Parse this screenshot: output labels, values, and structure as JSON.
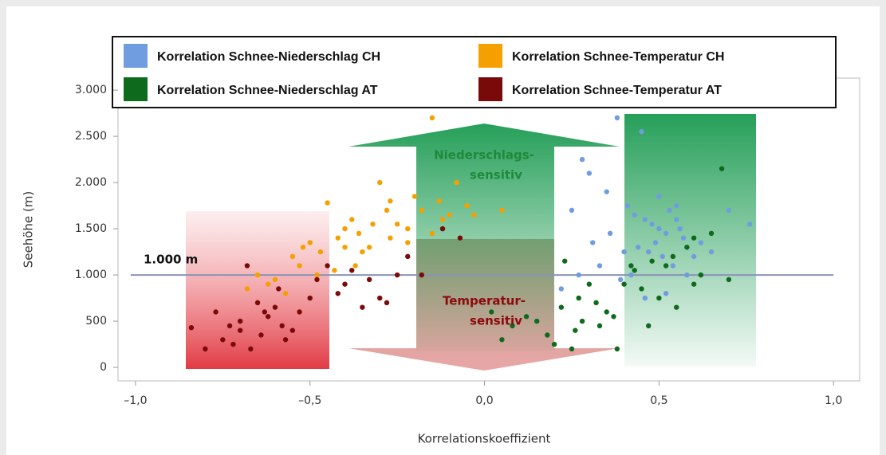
{
  "chart_data": {
    "type": "scatter",
    "xlabel": "Korrelationskoeffizient",
    "ylabel": "Seehöhe (m)",
    "xlim": [
      -1.05,
      1.075
    ],
    "ylim": [
      -146,
      3130
    ],
    "xticks": [
      {
        "value": -1,
        "label": "–1,0"
      },
      {
        "value": -0.5,
        "label": "–0,5"
      },
      {
        "value": 0,
        "label": "0,0"
      },
      {
        "value": 0.5,
        "label": "0,5"
      },
      {
        "value": 1,
        "label": "1,0"
      }
    ],
    "yticks": [
      0,
      500,
      {
        "value": 1000,
        "label": "1.000"
      },
      {
        "value": 1500,
        "label": "1.500"
      },
      {
        "value": 2000,
        "label": "2.000"
      },
      {
        "value": 2500,
        "label": "2.500"
      },
      {
        "value": 3000,
        "label": "3.000"
      }
    ],
    "reference_line": {
      "value": 1000,
      "label": "1.000 m",
      "color": "#8a94b8"
    },
    "annotations": [
      {
        "text": [
          "Niederschlags-",
          "sensitiv"
        ],
        "color": "#1e8a3a"
      },
      {
        "text": [
          "Temperatur-",
          "sensitiv"
        ],
        "color": "#8b0a0a"
      }
    ],
    "series": [
      {
        "name": "Korrelation Schnee-Niederschlag CH",
        "color": "#6f9de0",
        "x": [
          0.38,
          0.45,
          0.3,
          0.25,
          0.28,
          0.35,
          0.41,
          0.43,
          0.46,
          0.48,
          0.5,
          0.52,
          0.53,
          0.55,
          0.57,
          0.49,
          0.51,
          0.54,
          0.44,
          0.47,
          0.56,
          0.58,
          0.6,
          0.62,
          0.42,
          0.39,
          0.33,
          0.27,
          0.22,
          0.46,
          0.52,
          0.65,
          0.7,
          0.76,
          0.36,
          0.4,
          0.58,
          0.31,
          0.5,
          0.55
        ],
        "y": [
          2700,
          2550,
          2100,
          1700,
          2250,
          1900,
          1750,
          1650,
          1600,
          1550,
          1500,
          1450,
          1700,
          1600,
          1400,
          1350,
          1200,
          1100,
          1300,
          1250,
          1500,
          1300,
          1200,
          1350,
          1000,
          950,
          1100,
          1000,
          850,
          750,
          800,
          1250,
          1700,
          1550,
          1450,
          1250,
          1000,
          1350,
          1850,
          1750
        ]
      },
      {
        "name": "Korrelation Schnee-Temperatur CH",
        "color": "#f5a000",
        "x": [
          -0.68,
          -0.65,
          -0.6,
          -0.55,
          -0.52,
          -0.5,
          -0.47,
          -0.45,
          -0.42,
          -0.4,
          -0.38,
          -0.36,
          -0.35,
          -0.33,
          -0.3,
          -0.28,
          -0.27,
          -0.25,
          -0.22,
          -0.2,
          -0.18,
          -0.15,
          -0.13,
          -0.1,
          -0.08,
          -0.05,
          -0.03,
          -0.15,
          -0.27,
          -0.37,
          -0.43,
          -0.57,
          -0.62,
          -0.48,
          -0.32,
          0.05,
          -0.12,
          -0.22,
          -0.4,
          -0.53
        ],
        "y": [
          850,
          1000,
          950,
          1200,
          1300,
          1350,
          1250,
          1780,
          1400,
          1500,
          1600,
          1450,
          1250,
          1300,
          2000,
          1700,
          1400,
          1550,
          1500,
          1850,
          1700,
          2700,
          1800,
          1650,
          2000,
          1750,
          1650,
          1450,
          1800,
          1100,
          1050,
          800,
          900,
          1000,
          1550,
          1700,
          1600,
          1350,
          1300,
          1100
        ]
      },
      {
        "name": "Korrelation Schnee-Niederschlag AT",
        "color": "#0e6b1e",
        "x": [
          0.02,
          0.05,
          0.08,
          0.12,
          0.15,
          0.18,
          0.2,
          0.22,
          0.25,
          0.27,
          0.28,
          0.3,
          0.32,
          0.35,
          0.37,
          0.38,
          0.4,
          0.42,
          0.45,
          0.47,
          0.5,
          0.52,
          0.55,
          0.58,
          0.6,
          0.62,
          0.65,
          0.68,
          0.7,
          0.23,
          0.26,
          0.33,
          0.43,
          0.48,
          0.54,
          0.6
        ],
        "y": [
          600,
          300,
          450,
          550,
          500,
          350,
          250,
          650,
          200,
          750,
          500,
          900,
          700,
          600,
          550,
          200,
          900,
          1100,
          850,
          450,
          750,
          1100,
          650,
          1300,
          1400,
          1000,
          1450,
          2150,
          950,
          1150,
          400,
          450,
          1050,
          1150,
          1200,
          900
        ]
      },
      {
        "name": "Korrelation Schnee-Temperatur AT",
        "color": "#7a0a0a",
        "x": [
          -0.84,
          -0.8,
          -0.77,
          -0.75,
          -0.73,
          -0.72,
          -0.7,
          -0.68,
          -0.67,
          -0.65,
          -0.63,
          -0.62,
          -0.6,
          -0.58,
          -0.57,
          -0.55,
          -0.53,
          -0.5,
          -0.48,
          -0.45,
          -0.42,
          -0.4,
          -0.38,
          -0.35,
          -0.33,
          -0.3,
          -0.28,
          -0.25,
          -0.22,
          -0.18,
          -0.12,
          -0.07,
          -0.7,
          -0.64,
          -0.59
        ],
        "y": [
          430,
          200,
          600,
          300,
          450,
          250,
          400,
          1100,
          200,
          700,
          600,
          550,
          650,
          450,
          300,
          400,
          600,
          750,
          950,
          1100,
          800,
          900,
          1050,
          650,
          950,
          750,
          700,
          1000,
          1200,
          1000,
          1500,
          1400,
          500,
          350,
          850
        ]
      }
    ]
  }
}
